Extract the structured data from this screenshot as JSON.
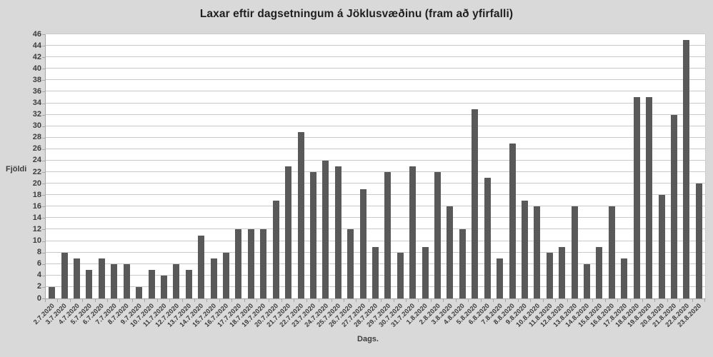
{
  "figure": {
    "title": "Laxar eftir dagsetningum á Jöklusvæðinu (fram að yfirfalli)",
    "y_axis_title": "Fjöldi",
    "x_axis_title": "Dags."
  },
  "colors": {
    "figure_background": "#d9d9d9",
    "plot_background": "#ffffff",
    "bar": "#595959",
    "gridline": "#c9c9c9",
    "axis_line": "#a6a6a6",
    "text": "#3d3d3d"
  },
  "chart_data": {
    "type": "bar",
    "title": "Laxar eftir dagsetningum á Jöklusvæðinu (fram að yfirfalli)",
    "xlabel": "Dags.",
    "ylabel": "Fjöldi",
    "ylim": [
      0,
      46
    ],
    "y_tick_step": 2,
    "y_ticks": [
      0,
      2,
      4,
      6,
      8,
      10,
      12,
      14,
      16,
      18,
      20,
      22,
      24,
      26,
      28,
      30,
      32,
      34,
      36,
      38,
      40,
      42,
      44,
      46
    ],
    "grid": true,
    "legend": "none",
    "bar_color": "#595959",
    "categories": [
      "2.7.2020",
      "3.7.2020",
      "4.7.2020",
      "5.7.2020",
      "6.7.2020",
      "7.7.2020",
      "8.7.2020",
      "9.7.2020",
      "10.7.2020",
      "11.7.2020",
      "12.7.2020",
      "13.7.2020",
      "14.7.2020",
      "15.7.2020",
      "16.7.2020",
      "17.7.2020",
      "18.7.2020",
      "19.7.2020",
      "20.7.2020",
      "21.7.2020",
      "22.7.2020",
      "23.7.2020",
      "24.7.2020",
      "25.7.2020",
      "26.7.2020",
      "27.7.2020",
      "28.7.2020",
      "29.7.2020",
      "30.7.2020",
      "31.7.2020",
      "1.8.2020",
      "2.8.2020",
      "3.8.2020",
      "4.8.2020",
      "5.8.2020",
      "6.8.2020",
      "7.8.2020",
      "8.8.2020",
      "9.8.2020",
      "10.8.2020",
      "11.8.2020",
      "12.8.2020",
      "13.8.2020",
      "14.8.2020",
      "15.8.2020",
      "16.8.2020",
      "17.8.2020",
      "18.8.2020",
      "19.8.2020",
      "20.8.2020",
      "21.8.2020",
      "22.8.2020",
      "23.8.2020"
    ],
    "values": [
      2,
      8,
      7,
      5,
      7,
      6,
      6,
      2,
      5,
      4,
      6,
      5,
      11,
      7,
      8,
      12,
      12,
      12,
      17,
      23,
      29,
      22,
      24,
      23,
      12,
      19,
      9,
      22,
      8,
      23,
      9,
      22,
      16,
      12,
      33,
      21,
      7,
      27,
      17,
      16,
      8,
      9,
      16,
      6,
      9,
      16,
      7,
      35,
      35,
      18,
      32,
      45,
      20
    ]
  }
}
